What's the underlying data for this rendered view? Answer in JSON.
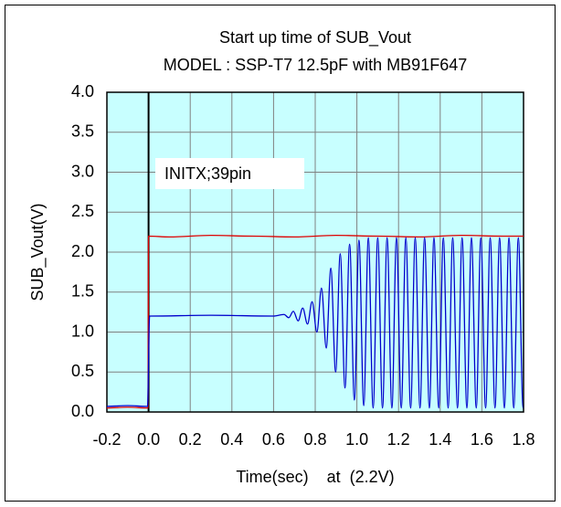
{
  "chart_data": {
    "type": "line",
    "title": "Start up time of SUB_Vout",
    "subtitle": "MODEL : SSP-T7 12.5pF with MB91F647",
    "x_label": "Time(sec)    at  (2.2V)",
    "y_label": "SUB_Vout(V)",
    "annotation": {
      "text": "INITX;39pin",
      "color": "#dd0000"
    },
    "xlim": [
      -0.2,
      1.8
    ],
    "xticks": [
      -0.2,
      {
        "value": 0,
        "label": "0.0"
      },
      0.2,
      0.4,
      0.6,
      0.8,
      {
        "value": 1,
        "label": "1.0"
      },
      1.2,
      1.4,
      1.6,
      1.8
    ],
    "ylim": [
      0,
      4
    ],
    "yticks": [
      {
        "value": 0,
        "label": "0.0"
      },
      0.5,
      {
        "value": 1,
        "label": "1.0"
      },
      1.5,
      {
        "value": 2,
        "label": "2.0"
      },
      2.5,
      {
        "value": 3,
        "label": "3.0"
      },
      3.5,
      {
        "value": 4,
        "label": "4.0"
      }
    ],
    "grid": true,
    "background": "#c8ffff",
    "series": [
      {
        "color": "#dd0000",
        "x": [
          -0.2,
          -0.1,
          -0.003,
          0.0,
          0.1,
          0.3,
          0.5,
          0.7,
          0.9,
          1.1,
          1.3,
          1.5,
          1.7,
          1.8
        ],
        "values": [
          0.05,
          0.06,
          0.05,
          2.2,
          2.19,
          2.21,
          2.2,
          2.19,
          2.21,
          2.2,
          2.19,
          2.21,
          2.2,
          2.2
        ]
      },
      {
        "color": "#0000cc",
        "x": [
          -0.2,
          -0.1,
          -0.005,
          0.005,
          0.3,
          0.6,
          0.65,
          0.673,
          0.695,
          0.718,
          0.74,
          0.763,
          0.785,
          0.808,
          0.83,
          0.853,
          0.875,
          0.898,
          0.92,
          0.943,
          0.965,
          0.988,
          1.01,
          1.033,
          1.055,
          1.078,
          1.1,
          1.123,
          1.145,
          1.168,
          1.19,
          1.213,
          1.235,
          1.258,
          1.28,
          1.303,
          1.325,
          1.348,
          1.37,
          1.393,
          1.415,
          1.438,
          1.46,
          1.483,
          1.505,
          1.528,
          1.55,
          1.573,
          1.595,
          1.618,
          1.64,
          1.663,
          1.685,
          1.708,
          1.73,
          1.753,
          1.775,
          1.798
        ],
        "values": [
          0.07,
          0.08,
          0.07,
          1.2,
          1.21,
          1.2,
          1.22,
          1.18,
          1.26,
          1.14,
          1.3,
          1.1,
          1.38,
          1.0,
          1.55,
          0.8,
          1.8,
          0.5,
          1.98,
          0.3,
          2.1,
          0.15,
          2.15,
          0.08,
          2.18,
          0.05,
          2.18,
          0.05,
          2.18,
          0.05,
          2.18,
          0.05,
          2.18,
          0.05,
          2.18,
          0.05,
          2.18,
          0.05,
          2.18,
          0.05,
          2.18,
          0.05,
          2.18,
          0.05,
          2.18,
          0.05,
          2.18,
          0.05,
          2.18,
          0.05,
          2.18,
          0.05,
          2.18,
          0.05,
          2.18,
          0.05,
          2.18,
          0.05
        ]
      }
    ]
  }
}
